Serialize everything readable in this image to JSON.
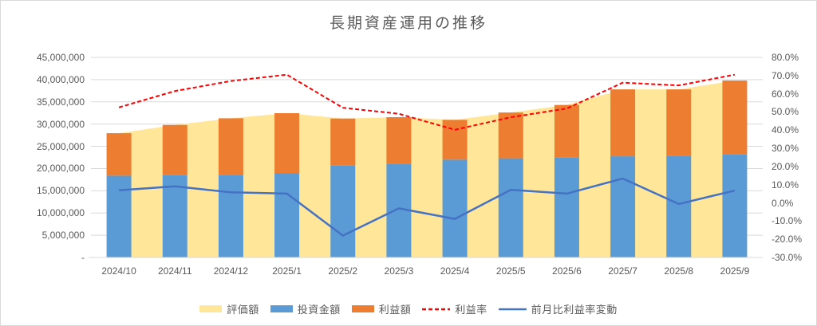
{
  "title": "長期資産運用の推移",
  "colors": {
    "valuation_area": "#FFE699",
    "investment_bar": "#5B9BD5",
    "profit_bar": "#ED7D31",
    "rate_line": "#FF0000",
    "change_line": "#4472C4",
    "gridline": "#D9D9D9",
    "axis_line": "#D9D9D9",
    "text": "#595959"
  },
  "legend": {
    "items": [
      {
        "label": "評価額",
        "marker": "rect",
        "color": "#FFE699"
      },
      {
        "label": "投資金額",
        "marker": "rect",
        "color": "#5B9BD5"
      },
      {
        "label": "利益額",
        "marker": "rect",
        "color": "#ED7D31"
      },
      {
        "label": "利益率",
        "marker": "dashed-line",
        "color": "#FF0000"
      },
      {
        "label": "前月比利益率変動",
        "marker": "solid-line",
        "color": "#4472C4"
      }
    ]
  },
  "chart_data": {
    "type": "combo",
    "title": "長期資産運用の推移",
    "categories": [
      "2024/10",
      "2024/11",
      "2024/12",
      "2025/1",
      "2025/2",
      "2025/3",
      "2025/4",
      "2025/5",
      "2025/6",
      "2025/7",
      "2025/8",
      "2025/9"
    ],
    "series": [
      {
        "name": "評価額",
        "type": "area",
        "axis": "left",
        "color": "#FFE699",
        "values": [
          27950000,
          29800000,
          31300000,
          32450000,
          31250000,
          31550000,
          30950000,
          32600000,
          34300000,
          37800000,
          37800000,
          39800000
        ]
      },
      {
        "name": "投資金額",
        "type": "bar",
        "axis": "left",
        "color": "#5B9BD5",
        "values": [
          18400000,
          18500000,
          18600000,
          19000000,
          20650000,
          21100000,
          22000000,
          22300000,
          22450000,
          22750000,
          22900000,
          23150000
        ]
      },
      {
        "name": "利益額",
        "type": "bar-stacked-on-投資金額",
        "axis": "left",
        "color": "#ED7D31",
        "values": [
          9550000,
          11300000,
          12700000,
          13450000,
          10600000,
          10450000,
          8950000,
          10300000,
          11850000,
          15050000,
          14900000,
          16650000
        ]
      },
      {
        "name": "利益率",
        "type": "line-dashed",
        "axis": "right",
        "color": "#FF0000",
        "values": [
          52.5,
          61.5,
          67.0,
          70.5,
          52.3,
          49.0,
          40.2,
          47.1,
          51.9,
          66.1,
          64.6,
          70.5
        ]
      },
      {
        "name": "前月比利益率変動",
        "type": "line",
        "axis": "right",
        "color": "#4472C4",
        "values": [
          6.9,
          9.1,
          5.8,
          5.1,
          -18.0,
          -3.0,
          -8.8,
          7.2,
          5.1,
          13.4,
          -0.6,
          6.8
        ]
      }
    ],
    "left_axis": {
      "min": 0,
      "max": 45000000,
      "step": 5000000,
      "tick_labels": [
        "45,000,000",
        "40,000,000",
        "35,000,000",
        "30,000,000",
        "25,000,000",
        "20,000,000",
        "15,000,000",
        "10,000,000",
        "5,000,000",
        "-"
      ]
    },
    "right_axis": {
      "min": -30,
      "max": 80,
      "step": 10,
      "tick_labels": [
        "80.0%",
        "70.0%",
        "60.0%",
        "50.0%",
        "40.0%",
        "30.0%",
        "20.0%",
        "10.0%",
        "0.0%",
        "-10.0%",
        "-20.0%",
        "-30.0%"
      ]
    },
    "grid": "horizontal",
    "legend_position": "bottom"
  }
}
